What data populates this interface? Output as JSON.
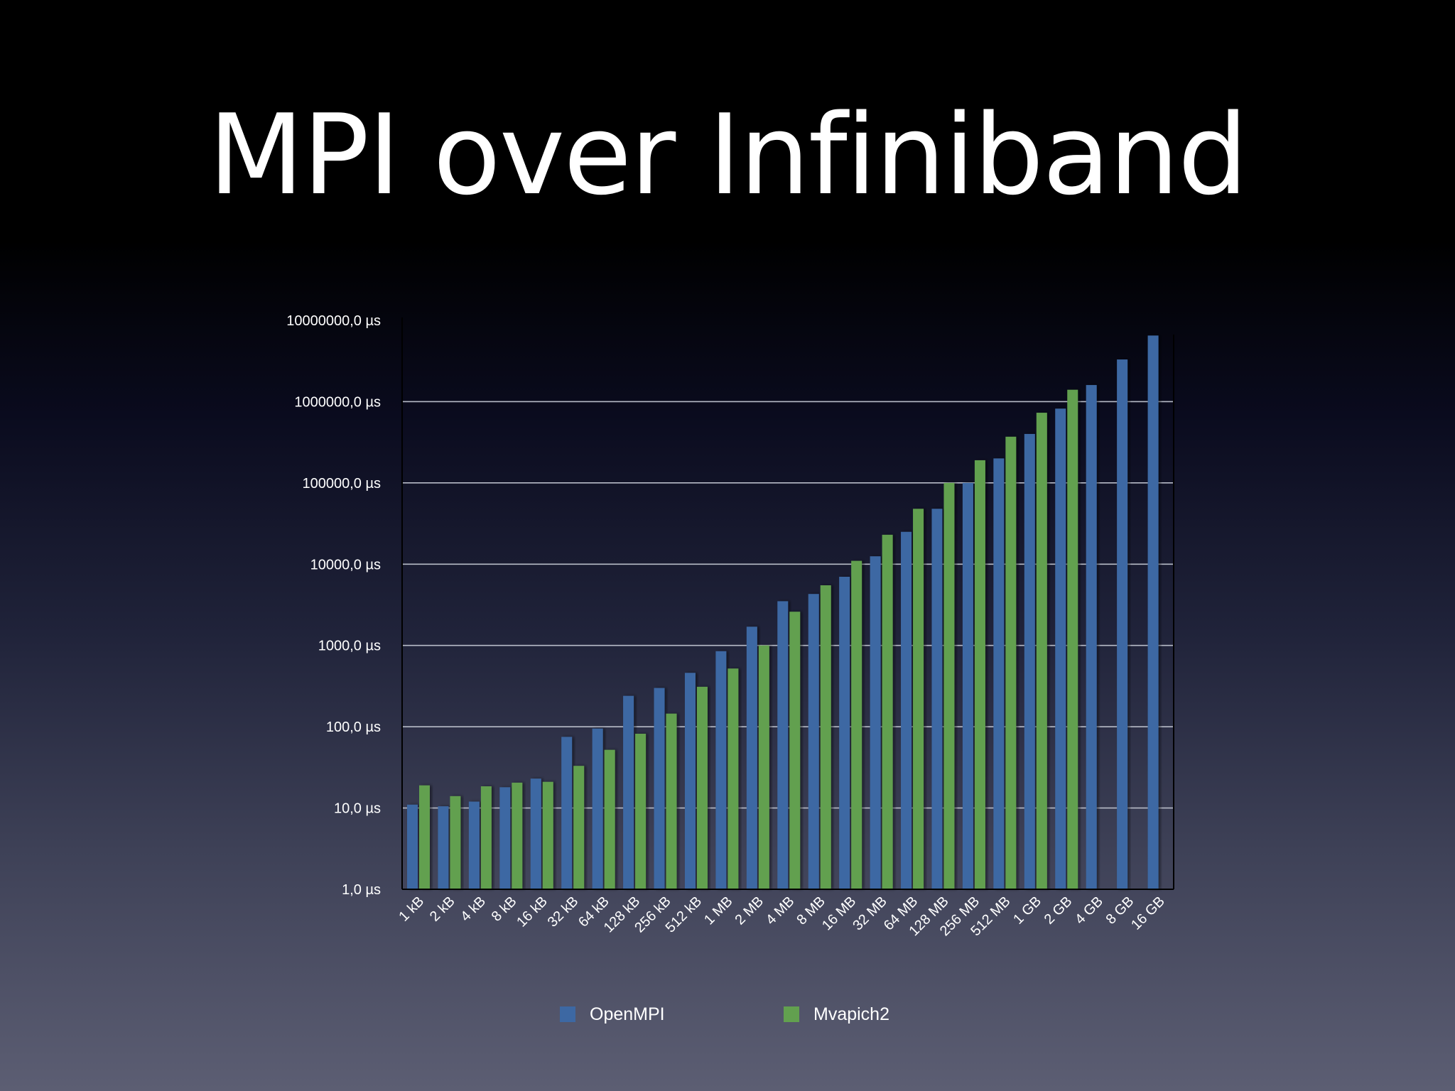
{
  "slide": {
    "title": "MPI over Infiniband"
  },
  "colors": {
    "openmpi": "#3d68a3",
    "mvapich2": "#62a04f",
    "grid": "#b8bcc8",
    "axis": "#000000",
    "text": "#ffffff"
  },
  "chart_data": {
    "type": "bar",
    "y_scale": "log",
    "ylim": [
      1,
      10000000
    ],
    "y_ticks": [
      1,
      10,
      100,
      1000,
      10000,
      100000,
      1000000,
      10000000
    ],
    "y_tick_labels": [
      "1,0 µs",
      "10,0 µs",
      "100,0 µs",
      "1000,0 µs",
      "10000,0 µs",
      "100000,0 µs",
      "1000000,0 µs",
      "10000000,0 µs"
    ],
    "grid": true,
    "legend_position": "bottom",
    "categories": [
      "1 kB",
      "2 kB",
      "4 kB",
      "8 kB",
      "16 kB",
      "32 kB",
      "64 kB",
      "128 kB",
      "256 kB",
      "512 kB",
      "1 MB",
      "2 MB",
      "4 MB",
      "8 MB",
      "16 MB",
      "32 MB",
      "64 MB",
      "128 MB",
      "256 MB",
      "512 MB",
      "1 GB",
      "2 GB",
      "4 GB",
      "8 GB",
      "16 GB"
    ],
    "series": [
      {
        "name": "OpenMPI",
        "color": "#3d68a3",
        "values": [
          11,
          10.5,
          12,
          18,
          23,
          75,
          95,
          240,
          300,
          460,
          850,
          1700,
          3500,
          4300,
          7000,
          12500,
          25000,
          48000,
          100000,
          200000,
          400000,
          820000,
          1600000,
          3300000,
          6500000
        ]
      },
      {
        "name": "Mvapich2",
        "color": "#62a04f",
        "values": [
          19,
          14,
          18.5,
          20.5,
          21,
          33,
          52,
          82,
          145,
          310,
          520,
          1000,
          2600,
          5500,
          11000,
          23000,
          48000,
          100000,
          190000,
          370000,
          730000,
          1400000,
          null,
          null,
          null
        ]
      }
    ]
  }
}
